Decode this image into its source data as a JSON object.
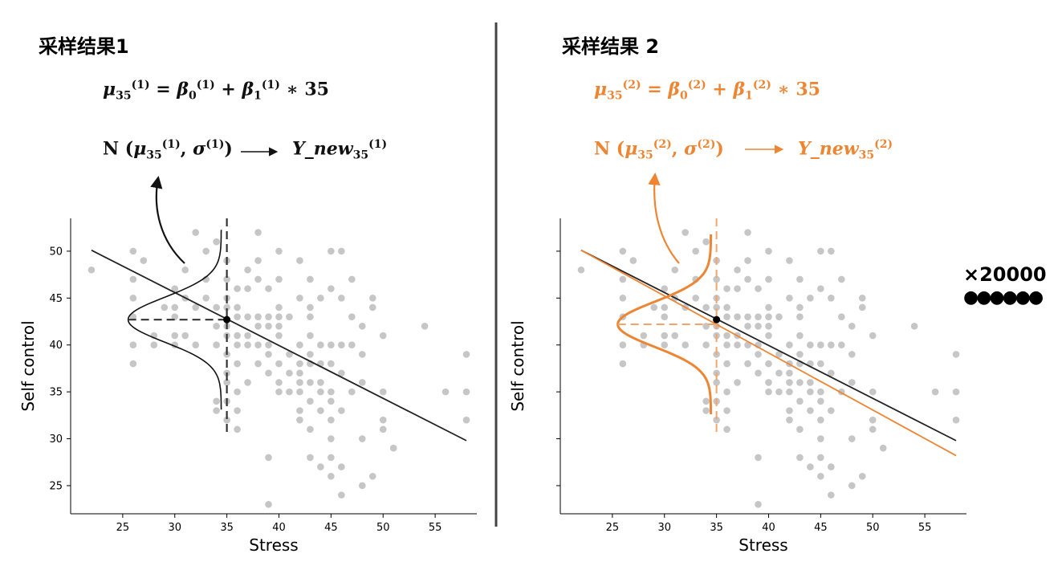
{
  "panels": [
    {
      "heading": "采样结果1",
      "eq_line1": [
        "μ",
        "35",
        "(1)",
        " = ",
        "β",
        "0",
        "(1)",
        " + ",
        "β",
        "1",
        "(1)",
        " ∗ 35"
      ],
      "eq_line2": [
        "N (",
        "μ",
        "35",
        "(1)",
        ", ",
        "σ",
        "(1)",
        ")",
        "Y_new",
        "35",
        "(1)"
      ],
      "text_color": "#111111"
    },
    {
      "heading": "采样结果 2",
      "eq_line1": [
        "μ",
        "35",
        "(2)",
        " = ",
        "β",
        "0",
        "(2)",
        " + ",
        "β",
        "1",
        "(2)",
        " ∗ 35"
      ],
      "eq_line2": [
        "N (",
        "μ",
        "35",
        "(2)",
        ", ",
        "σ",
        "(2)",
        ")",
        "Y_new",
        "35",
        "(2)"
      ],
      "text_color": "#ee8533"
    }
  ],
  "repeat_label": "×20000",
  "repeat_dots": "●●●●●●",
  "chart_data": [
    {
      "type": "scatter",
      "xlabel": "Stress",
      "ylabel": "Self control",
      "xticks": [
        25,
        30,
        35,
        40,
        45,
        50,
        55
      ],
      "yticks": [
        25,
        30,
        35,
        40,
        45,
        50
      ],
      "xlim": [
        20,
        59
      ],
      "ylim": [
        22,
        53.5
      ],
      "points": [
        [
          22,
          48
        ],
        [
          26,
          50
        ],
        [
          26,
          47
        ],
        [
          26,
          45
        ],
        [
          26,
          43
        ],
        [
          26,
          40
        ],
        [
          26,
          38
        ],
        [
          27,
          49
        ],
        [
          28,
          41
        ],
        [
          28,
          40
        ],
        [
          29,
          44
        ],
        [
          30,
          46
        ],
        [
          30,
          44
        ],
        [
          30,
          43
        ],
        [
          30,
          41
        ],
        [
          30,
          40
        ],
        [
          31,
          48
        ],
        [
          31,
          45
        ],
        [
          31,
          41
        ],
        [
          32,
          52
        ],
        [
          32,
          44
        ],
        [
          32,
          40
        ],
        [
          33,
          50
        ],
        [
          33,
          47
        ],
        [
          33,
          45
        ],
        [
          34,
          51
        ],
        [
          34,
          44
        ],
        [
          34,
          42
        ],
        [
          34,
          40
        ],
        [
          34,
          34
        ],
        [
          34,
          33
        ],
        [
          35,
          49
        ],
        [
          35,
          47
        ],
        [
          35,
          45
        ],
        [
          35,
          44
        ],
        [
          35,
          42
        ],
        [
          35,
          41
        ],
        [
          35,
          39
        ],
        [
          35,
          37
        ],
        [
          35,
          36
        ],
        [
          35,
          34
        ],
        [
          35,
          32
        ],
        [
          36,
          46
        ],
        [
          36,
          44
        ],
        [
          36,
          43
        ],
        [
          36,
          41
        ],
        [
          36,
          40
        ],
        [
          36,
          38
        ],
        [
          36,
          35
        ],
        [
          36,
          33
        ],
        [
          36,
          31
        ],
        [
          37,
          48
        ],
        [
          37,
          46
        ],
        [
          37,
          43
        ],
        [
          37,
          41
        ],
        [
          37,
          40
        ],
        [
          37,
          36
        ],
        [
          38,
          52
        ],
        [
          38,
          49
        ],
        [
          38,
          47
        ],
        [
          38,
          43
        ],
        [
          38,
          42
        ],
        [
          38,
          40
        ],
        [
          38,
          38
        ],
        [
          39,
          46
        ],
        [
          39,
          43
        ],
        [
          39,
          42
        ],
        [
          39,
          40
        ],
        [
          39,
          39
        ],
        [
          39,
          37
        ],
        [
          39,
          28
        ],
        [
          39,
          23
        ],
        [
          40,
          50
        ],
        [
          40,
          47
        ],
        [
          40,
          44
        ],
        [
          40,
          43
        ],
        [
          40,
          42
        ],
        [
          40,
          41
        ],
        [
          40,
          38
        ],
        [
          40,
          36
        ],
        [
          40,
          35
        ],
        [
          41,
          43
        ],
        [
          41,
          39
        ],
        [
          41,
          37
        ],
        [
          41,
          35
        ],
        [
          42,
          49
        ],
        [
          42,
          45
        ],
        [
          42,
          40
        ],
        [
          42,
          38
        ],
        [
          42,
          37
        ],
        [
          42,
          36
        ],
        [
          42,
          35
        ],
        [
          42,
          33
        ],
        [
          42,
          32
        ],
        [
          43,
          47
        ],
        [
          43,
          44
        ],
        [
          43,
          43
        ],
        [
          43,
          41
        ],
        [
          43,
          39
        ],
        [
          43,
          38
        ],
        [
          43,
          36
        ],
        [
          43,
          34
        ],
        [
          43,
          31
        ],
        [
          43,
          28
        ],
        [
          44,
          45
        ],
        [
          44,
          40
        ],
        [
          44,
          38
        ],
        [
          44,
          36
        ],
        [
          44,
          35
        ],
        [
          44,
          33
        ],
        [
          44,
          27
        ],
        [
          45,
          50
        ],
        [
          45,
          46
        ],
        [
          45,
          40
        ],
        [
          45,
          38
        ],
        [
          45,
          35
        ],
        [
          45,
          34
        ],
        [
          45,
          32
        ],
        [
          45,
          30
        ],
        [
          45,
          28
        ],
        [
          45,
          26
        ],
        [
          46,
          50
        ],
        [
          46,
          45
        ],
        [
          46,
          40
        ],
        [
          46,
          37
        ],
        [
          46,
          33
        ],
        [
          46,
          27
        ],
        [
          46,
          24
        ],
        [
          47,
          47
        ],
        [
          47,
          43
        ],
        [
          47,
          40
        ],
        [
          47,
          35
        ],
        [
          48,
          42
        ],
        [
          48,
          39
        ],
        [
          48,
          36
        ],
        [
          48,
          30
        ],
        [
          48,
          25
        ],
        [
          49,
          45
        ],
        [
          49,
          44
        ],
        [
          49,
          26
        ],
        [
          50,
          41
        ],
        [
          50,
          35
        ],
        [
          50,
          32
        ],
        [
          50,
          31
        ],
        [
          51,
          29
        ],
        [
          54,
          42
        ],
        [
          56,
          35
        ],
        [
          58,
          39
        ],
        [
          58,
          35
        ],
        [
          58,
          32
        ]
      ],
      "lines": [
        {
          "name": "",
          "color": "#222222",
          "x": [
            22,
            58
          ],
          "y": [
            50.1,
            29.8
          ]
        }
      ],
      "marked_point": {
        "x": 35,
        "y": 42.7
      },
      "curve_center": 42.7,
      "color": "#222222"
    },
    {
      "type": "scatter",
      "xlabel": "Stress",
      "ylabel": "Self control",
      "xticks": [
        25,
        30,
        35,
        40,
        45,
        50,
        55
      ],
      "yticks": [
        25,
        30,
        35,
        40,
        45,
        50
      ],
      "xlim": [
        20,
        59
      ],
      "ylim": [
        22,
        53.5
      ],
      "points": [
        [
          22,
          48
        ],
        [
          26,
          50
        ],
        [
          26,
          47
        ],
        [
          26,
          45
        ],
        [
          26,
          43
        ],
        [
          26,
          40
        ],
        [
          26,
          38
        ],
        [
          27,
          49
        ],
        [
          28,
          41
        ],
        [
          28,
          40
        ],
        [
          29,
          44
        ],
        [
          30,
          46
        ],
        [
          30,
          44
        ],
        [
          30,
          43
        ],
        [
          30,
          41
        ],
        [
          30,
          40
        ],
        [
          31,
          48
        ],
        [
          31,
          45
        ],
        [
          31,
          41
        ],
        [
          32,
          52
        ],
        [
          32,
          44
        ],
        [
          32,
          40
        ],
        [
          33,
          50
        ],
        [
          33,
          47
        ],
        [
          33,
          45
        ],
        [
          34,
          51
        ],
        [
          34,
          44
        ],
        [
          34,
          42
        ],
        [
          34,
          40
        ],
        [
          34,
          34
        ],
        [
          34,
          33
        ],
        [
          35,
          49
        ],
        [
          35,
          47
        ],
        [
          35,
          45
        ],
        [
          35,
          44
        ],
        [
          35,
          42
        ],
        [
          35,
          41
        ],
        [
          35,
          39
        ],
        [
          35,
          37
        ],
        [
          35,
          36
        ],
        [
          35,
          34
        ],
        [
          35,
          32
        ],
        [
          36,
          46
        ],
        [
          36,
          44
        ],
        [
          36,
          43
        ],
        [
          36,
          41
        ],
        [
          36,
          40
        ],
        [
          36,
          38
        ],
        [
          36,
          35
        ],
        [
          36,
          33
        ],
        [
          36,
          31
        ],
        [
          37,
          48
        ],
        [
          37,
          46
        ],
        [
          37,
          43
        ],
        [
          37,
          41
        ],
        [
          37,
          40
        ],
        [
          37,
          36
        ],
        [
          38,
          52
        ],
        [
          38,
          49
        ],
        [
          38,
          47
        ],
        [
          38,
          43
        ],
        [
          38,
          42
        ],
        [
          38,
          40
        ],
        [
          38,
          38
        ],
        [
          39,
          46
        ],
        [
          39,
          43
        ],
        [
          39,
          42
        ],
        [
          39,
          40
        ],
        [
          39,
          39
        ],
        [
          39,
          37
        ],
        [
          39,
          28
        ],
        [
          39,
          23
        ],
        [
          40,
          50
        ],
        [
          40,
          47
        ],
        [
          40,
          44
        ],
        [
          40,
          43
        ],
        [
          40,
          42
        ],
        [
          40,
          41
        ],
        [
          40,
          38
        ],
        [
          40,
          36
        ],
        [
          40,
          35
        ],
        [
          41,
          43
        ],
        [
          41,
          39
        ],
        [
          41,
          37
        ],
        [
          41,
          35
        ],
        [
          42,
          49
        ],
        [
          42,
          45
        ],
        [
          42,
          40
        ],
        [
          42,
          38
        ],
        [
          42,
          37
        ],
        [
          42,
          36
        ],
        [
          42,
          35
        ],
        [
          42,
          33
        ],
        [
          42,
          32
        ],
        [
          43,
          47
        ],
        [
          43,
          44
        ],
        [
          43,
          43
        ],
        [
          43,
          41
        ],
        [
          43,
          39
        ],
        [
          43,
          38
        ],
        [
          43,
          36
        ],
        [
          43,
          34
        ],
        [
          43,
          31
        ],
        [
          43,
          28
        ],
        [
          44,
          45
        ],
        [
          44,
          40
        ],
        [
          44,
          38
        ],
        [
          44,
          36
        ],
        [
          44,
          35
        ],
        [
          44,
          33
        ],
        [
          44,
          27
        ],
        [
          45,
          50
        ],
        [
          45,
          46
        ],
        [
          45,
          40
        ],
        [
          45,
          38
        ],
        [
          45,
          35
        ],
        [
          45,
          34
        ],
        [
          45,
          32
        ],
        [
          45,
          30
        ],
        [
          45,
          28
        ],
        [
          45,
          26
        ],
        [
          46,
          50
        ],
        [
          46,
          45
        ],
        [
          46,
          40
        ],
        [
          46,
          37
        ],
        [
          46,
          33
        ],
        [
          46,
          27
        ],
        [
          46,
          24
        ],
        [
          47,
          47
        ],
        [
          47,
          43
        ],
        [
          47,
          40
        ],
        [
          47,
          35
        ],
        [
          48,
          42
        ],
        [
          48,
          39
        ],
        [
          48,
          36
        ],
        [
          48,
          30
        ],
        [
          48,
          25
        ],
        [
          49,
          45
        ],
        [
          49,
          44
        ],
        [
          49,
          26
        ],
        [
          50,
          41
        ],
        [
          50,
          35
        ],
        [
          50,
          32
        ],
        [
          50,
          31
        ],
        [
          51,
          29
        ],
        [
          54,
          42
        ],
        [
          56,
          35
        ],
        [
          58,
          39
        ],
        [
          58,
          35
        ],
        [
          58,
          32
        ]
      ],
      "lines": [
        {
          "name": "",
          "color": "#222222",
          "x": [
            22,
            58
          ],
          "y": [
            50.1,
            29.8
          ]
        },
        {
          "name": "",
          "color": "#ee8533",
          "x": [
            22,
            58
          ],
          "y": [
            50.1,
            28.2
          ]
        }
      ],
      "marked_point": {
        "x": 35,
        "y": 42.7
      },
      "curve_center": 42.2,
      "color": "#ee8533"
    }
  ]
}
